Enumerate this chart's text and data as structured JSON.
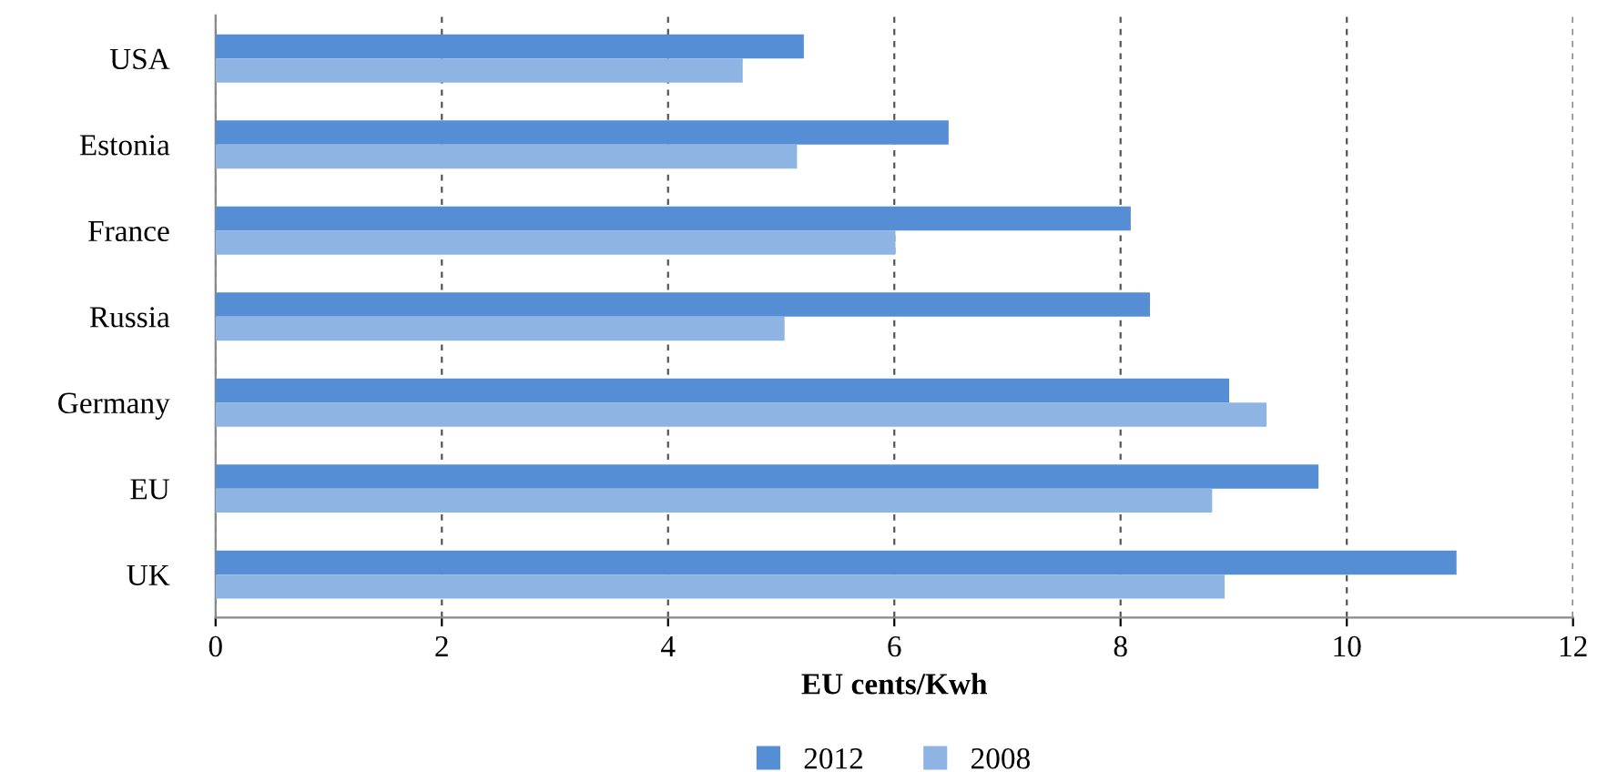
{
  "chart_data": {
    "type": "bar",
    "orientation": "horizontal",
    "xlabel": "EU cents/Kwh",
    "categories": [
      "USA",
      "Estonia",
      "France",
      "Russia",
      "Germany",
      "EU",
      "UK"
    ],
    "series": [
      {
        "name": "2012",
        "color": "#558ed5",
        "values": [
          5.2,
          6.48,
          8.09,
          8.26,
          8.96,
          9.75,
          10.97
        ]
      },
      {
        "name": "2008",
        "color": "#8eb4e3",
        "values": [
          4.66,
          5.14,
          6.01,
          5.03,
          9.29,
          8.81,
          8.92
        ]
      }
    ],
    "xlim": [
      0,
      12
    ],
    "xticks": [
      0,
      2,
      4,
      6,
      8,
      10,
      12
    ],
    "grid": "x",
    "legend": "bottom"
  }
}
